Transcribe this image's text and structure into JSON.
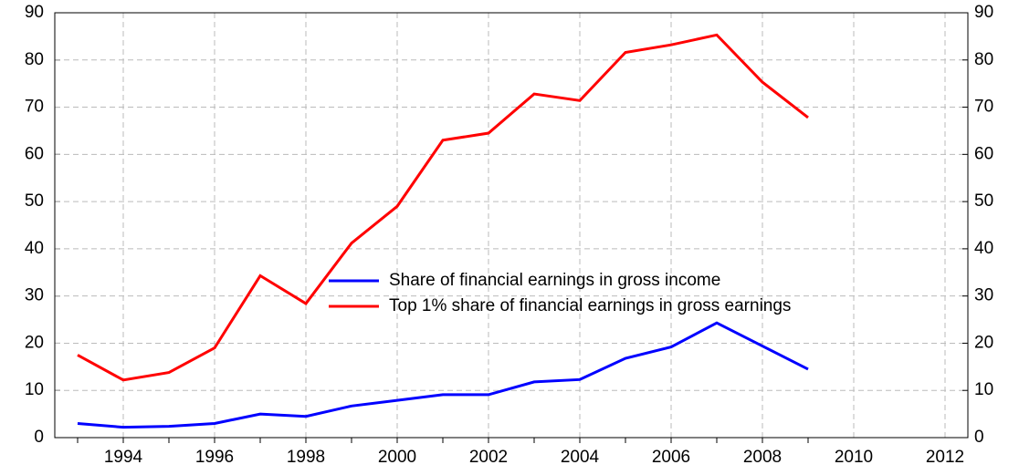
{
  "chart_data": {
    "type": "line",
    "x": [
      1993,
      1994,
      1995,
      1996,
      1997,
      1998,
      1999,
      2000,
      2001,
      2002,
      2003,
      2004,
      2005,
      2006,
      2007,
      2008,
      2009
    ],
    "series": [
      {
        "name": "Share of financial earnings in gross income",
        "color": "#0000ff",
        "values": [
          3.0,
          2.2,
          2.4,
          3.0,
          5.0,
          4.5,
          6.7,
          7.9,
          9.1,
          9.1,
          11.8,
          12.3,
          16.8,
          19.2,
          24.3,
          19.4,
          14.5
        ]
      },
      {
        "name": "Top 1% share of financial earnings in gross earnings",
        "color": "#ff0000",
        "values": [
          17.5,
          12.2,
          13.8,
          19.0,
          34.3,
          28.4,
          41.2,
          49.0,
          63.0,
          64.5,
          72.8,
          71.4,
          81.6,
          83.2,
          85.3,
          75.3,
          67.8
        ]
      }
    ],
    "xlim": [
      1992.5,
      2012.5
    ],
    "xticks": [
      1994,
      1996,
      1998,
      2000,
      2002,
      2004,
      2006,
      2008,
      2010,
      2012
    ],
    "ylim": [
      0,
      90
    ],
    "yticks": [
      0,
      10,
      20,
      30,
      40,
      50,
      60,
      70,
      80,
      90
    ],
    "y2lim": [
      0,
      90
    ],
    "y2ticks": [
      0,
      10,
      20,
      30,
      40,
      50,
      60,
      70,
      80,
      90
    ],
    "grid": true
  }
}
